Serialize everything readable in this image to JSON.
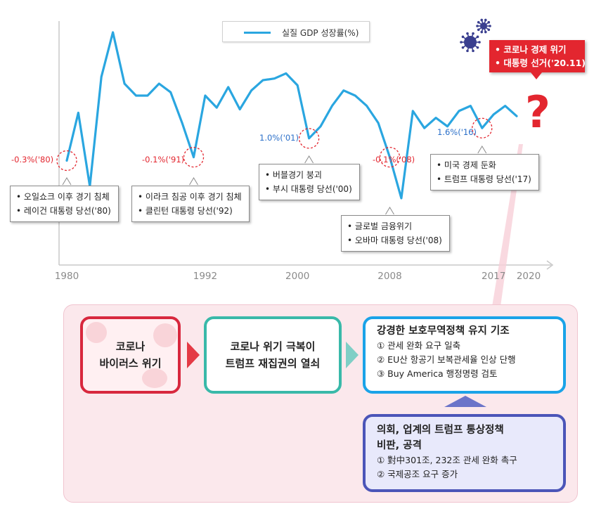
{
  "legend": {
    "label": "실질 GDP 성장률(%)",
    "color": "#2aa6e0"
  },
  "chart_data": {
    "type": "line",
    "series": [
      {
        "name": "실질 GDP 성장률(%)",
        "x": [
          1980,
          1981,
          1982,
          1983,
          1984,
          1985,
          1986,
          1987,
          1988,
          1989,
          1990,
          1991,
          1992,
          1993,
          1994,
          1995,
          1996,
          1997,
          1998,
          1999,
          2000,
          2001,
          2002,
          2003,
          2004,
          2005,
          2006,
          2007,
          2008,
          2009,
          2010,
          2011,
          2012,
          2013,
          2014,
          2015,
          2016,
          2017,
          2018,
          2019
        ],
        "values": [
          -0.3,
          2.5,
          -1.8,
          4.6,
          7.2,
          4.2,
          3.5,
          3.5,
          4.2,
          3.7,
          1.9,
          -0.1,
          3.5,
          2.8,
          4.0,
          2.7,
          3.8,
          4.4,
          4.5,
          4.8,
          4.1,
          1.0,
          1.7,
          2.9,
          3.8,
          3.5,
          2.9,
          1.9,
          -0.1,
          -2.5,
          2.6,
          1.6,
          2.2,
          1.7,
          2.6,
          2.9,
          1.6,
          2.4,
          2.9,
          2.3
        ]
      }
    ],
    "xticks": [
      "1980",
      "1992",
      "2000",
      "2008",
      "2017",
      "2020"
    ],
    "xlim": [
      1980,
      2020
    ],
    "ylim": [
      -2.5,
      7.2
    ],
    "grid": false,
    "legend": "top-center",
    "annotations": [
      {
        "x": 1980,
        "label": "-0.3%('80)",
        "color": "#e3262f"
      },
      {
        "x": 1991,
        "label": "-0.1%('91)",
        "color": "#e3262f"
      },
      {
        "x": 2001,
        "label": "1.0%('01)",
        "color": "#2a6fc9"
      },
      {
        "x": 2008,
        "label": "-0.1%('08)",
        "color": "#e3262f"
      },
      {
        "x": 2016,
        "label": "1.6%('16)",
        "color": "#2a6fc9"
      }
    ]
  },
  "callouts": [
    {
      "items": [
        "오일쇼크 이후 경기 침체",
        "레이건 대통령 당선('80)"
      ]
    },
    {
      "items": [
        "이라크 침공 이후 경기 침체",
        "클린턴 대통령 당선('92)"
      ]
    },
    {
      "items": [
        "버블경기 붕괴",
        "부시 대통령 당선('00)"
      ]
    },
    {
      "items": [
        "글로벌 금융위기",
        "오바마 대통령 당선('08)"
      ]
    },
    {
      "items": [
        "미국 경제 둔화",
        "트럼프 대통령 당선('17)"
      ]
    }
  ],
  "alert": {
    "items": [
      "코로나 경제 위기",
      "대통령 선거('20.11)"
    ],
    "qmark": "?",
    "color": "#e3262f"
  },
  "flow": {
    "box1": {
      "line1": "코로나",
      "line2": "바이러스 위기"
    },
    "box2": {
      "line1": "코로나 위기 극복이",
      "line2": "트럼프 재집권의 열쇠"
    },
    "box3": {
      "title": "강경한 보호무역정책 유지 기조",
      "items": [
        "① 관세 완화 요구 일축",
        "② EU산 항공기 보복관세율 인상 단행",
        "③ Buy America 행정명령 검토"
      ]
    },
    "box4": {
      "title_line1": "의회, 업계의 트럼프 통상정책",
      "title_line2": "비판, 공격",
      "items": [
        "① 對中301조, 232조 관세 완화 촉구",
        "② 국제공조 요구 증가"
      ]
    }
  }
}
